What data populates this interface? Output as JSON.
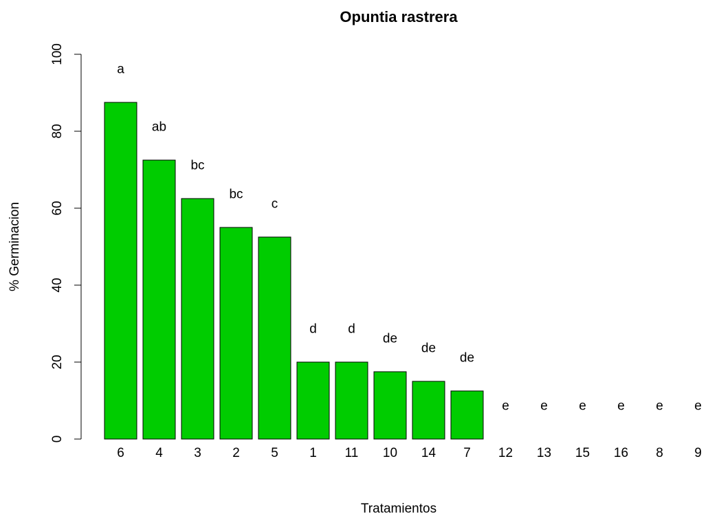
{
  "chart_data": {
    "type": "bar",
    "title": "Opuntia rastrera",
    "x_label": "Tratamientos",
    "y_label": "% Germinacion",
    "categories": [
      "6",
      "4",
      "3",
      "2",
      "5",
      "1",
      "11",
      "10",
      "14",
      "7",
      "12",
      "13",
      "15",
      "16",
      "8",
      "9"
    ],
    "values": [
      87.5,
      72.5,
      62.5,
      55,
      52.5,
      20,
      20,
      17.5,
      15,
      12.5,
      0,
      0,
      0,
      0,
      0,
      0
    ],
    "annotations": [
      "a",
      "ab",
      "bc",
      "bc",
      "c",
      "d",
      "d",
      "de",
      "de",
      "de",
      "e",
      "e",
      "e",
      "e",
      "e",
      "e"
    ],
    "color": "#00cc00",
    "ylim": [
      0,
      100
    ],
    "yticks": [
      0,
      20,
      40,
      60,
      80,
      100
    ]
  }
}
